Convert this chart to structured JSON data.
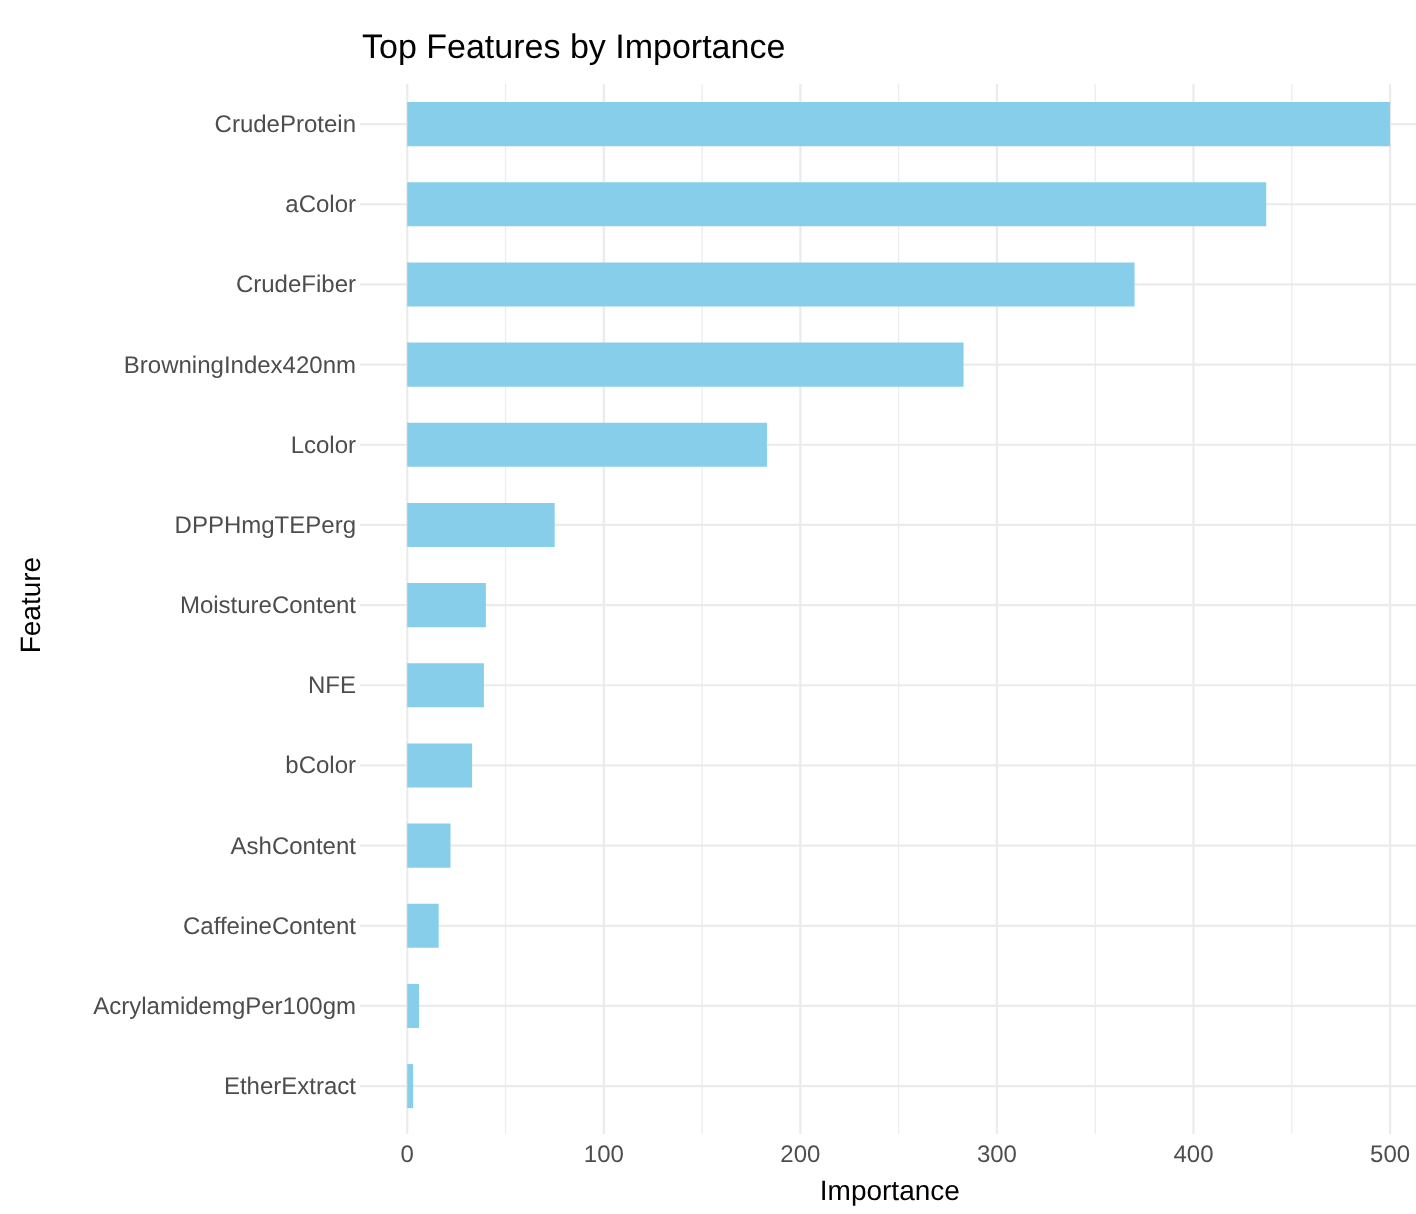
{
  "chart_data": {
    "type": "bar",
    "orientation": "horizontal",
    "title": "Top Features by Importance",
    "xlabel": "Importance",
    "ylabel": "Feature",
    "categories": [
      "CrudeProtein",
      "aColor",
      "CrudeFiber",
      "BrowningIndex420nm",
      "Lcolor",
      "DPPHmgTEPerg",
      "MoistureContent",
      "NFE",
      "bColor",
      "AshContent",
      "CaffeineContent",
      "AcrylamidemgPer100gm",
      "EtherExtract"
    ],
    "values": [
      500,
      437,
      370,
      283,
      183,
      75,
      40,
      39,
      33,
      22,
      16,
      6,
      3
    ],
    "color": "#87ceeb",
    "xlim": [
      -22,
      513
    ],
    "xticks": [
      0,
      {
        "value": 50,
        "label": null
      },
      100,
      {
        "value": 150,
        "label": null
      },
      200,
      {
        "value": 250,
        "label": null
      },
      300,
      {
        "value": 350,
        "label": null
      },
      400,
      {
        "value": 450,
        "label": null
      },
      500
    ],
    "grid": true
  }
}
